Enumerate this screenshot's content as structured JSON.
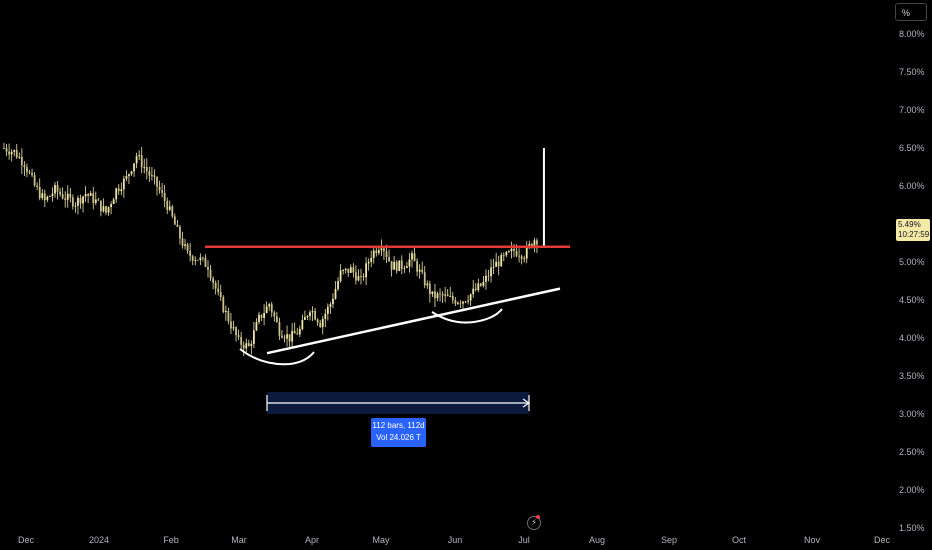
{
  "scale_button": "%",
  "last_price": {
    "value": "5.49%",
    "countdown": "10:27:59",
    "color": "#f5e9a6"
  },
  "measure": {
    "line1": "112 bars, 112d",
    "line2": "Vol 24.026 T",
    "color": "#2962ff"
  },
  "colors": {
    "background": "#000000",
    "candle": "#f0e6a8",
    "resistance_line": "#e53935",
    "drawing_lines": "#ffffff",
    "measure_box": "#0d1b40"
  },
  "chart_data": {
    "type": "candlestick",
    "y_axis": {
      "scale": "percent",
      "ylim": [
        1.5,
        8.25
      ],
      "ticks": [
        "8.00%",
        "7.50%",
        "7.00%",
        "6.50%",
        "6.00%",
        "5.50%",
        "5.00%",
        "4.50%",
        "4.00%",
        "3.50%",
        "3.00%",
        "2.50%",
        "2.00%",
        "1.50%"
      ],
      "tick_values": [
        8.0,
        7.5,
        7.0,
        6.5,
        6.0,
        5.5,
        5.0,
        4.5,
        4.0,
        3.5,
        3.0,
        2.5,
        2.0,
        1.5
      ]
    },
    "x_axis": {
      "ticks": [
        "Dec",
        "2024",
        "Feb",
        "Mar",
        "Apr",
        "May",
        "Jun",
        "Jul",
        "Aug",
        "Sep",
        "Oct",
        "Nov",
        "Dec"
      ]
    },
    "anchors": [
      [
        0,
        6.5
      ],
      [
        4,
        6.45
      ],
      [
        8,
        6.3
      ],
      [
        12,
        6.0
      ],
      [
        16,
        5.8
      ],
      [
        20,
        5.95
      ],
      [
        24,
        5.85
      ],
      [
        28,
        5.78
      ],
      [
        32,
        5.9
      ],
      [
        36,
        5.8
      ],
      [
        40,
        5.65
      ],
      [
        44,
        5.95
      ],
      [
        48,
        6.1
      ],
      [
        52,
        6.4
      ],
      [
        56,
        6.2
      ],
      [
        60,
        6.0
      ],
      [
        64,
        5.75
      ],
      [
        68,
        5.4
      ],
      [
        72,
        5.1
      ],
      [
        76,
        5.05
      ],
      [
        80,
        4.95
      ],
      [
        84,
        4.55
      ],
      [
        88,
        4.25
      ],
      [
        92,
        3.95
      ],
      [
        96,
        3.88
      ],
      [
        100,
        4.25
      ],
      [
        104,
        4.45
      ],
      [
        108,
        4.1
      ],
      [
        112,
        4.0
      ],
      [
        116,
        4.1
      ],
      [
        120,
        4.4
      ],
      [
        124,
        4.2
      ],
      [
        128,
        4.45
      ],
      [
        132,
        4.85
      ],
      [
        136,
        4.9
      ],
      [
        140,
        4.75
      ],
      [
        144,
        5.1
      ],
      [
        148,
        5.25
      ],
      [
        152,
        4.95
      ],
      [
        156,
        4.95
      ],
      [
        160,
        5.05
      ],
      [
        164,
        4.8
      ],
      [
        168,
        4.55
      ],
      [
        172,
        4.55
      ],
      [
        176,
        4.5
      ],
      [
        180,
        4.5
      ],
      [
        184,
        4.6
      ],
      [
        188,
        4.72
      ],
      [
        192,
        4.95
      ],
      [
        196,
        5.05
      ],
      [
        200,
        5.15
      ],
      [
        204,
        5.1
      ],
      [
        208,
        5.3
      ]
    ],
    "last_candle_high": 6.5,
    "resistance_level": 5.2,
    "trendline": [
      [
        90,
        3.8
      ],
      [
        213,
        4.65
      ]
    ],
    "measure_range_bars": 112
  }
}
